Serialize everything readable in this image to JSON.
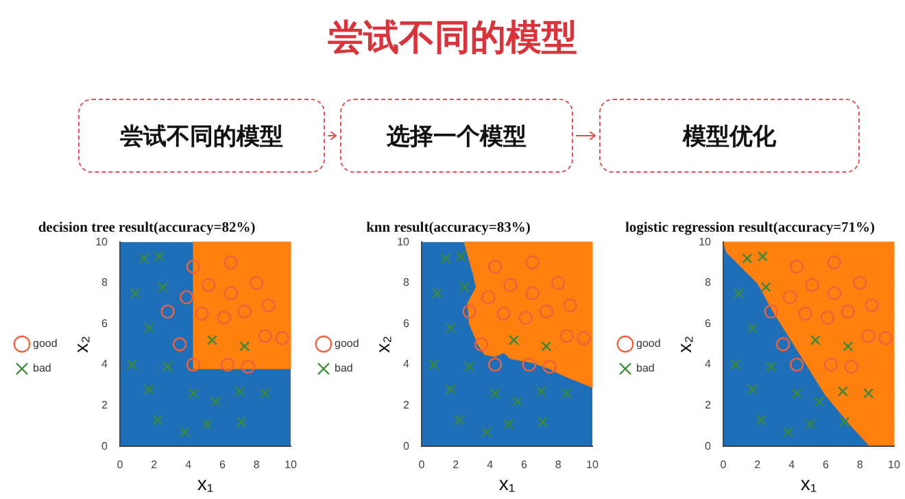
{
  "chart_data": [
    {
      "type": "other",
      "title": "尝试不同的模型",
      "annotations": [
        "尝试不同的模型",
        "选择一个模型",
        "模型优化"
      ]
    },
    {
      "type": "scatter",
      "title": "decision tree result(accuracy=82%)",
      "xlabel": "x₁",
      "ylabel": "x₂",
      "xlim": [
        0,
        10
      ],
      "ylim": [
        0,
        10
      ],
      "xticks": [
        0,
        2,
        4,
        6,
        8,
        10
      ],
      "yticks": [
        0,
        2,
        4,
        6,
        8,
        10
      ],
      "grid": false,
      "legend": "left",
      "series": [
        {
          "name": "good",
          "color": "#f0603c",
          "marker": "circle",
          "x": [
            4.3,
            6.5,
            5.2,
            6.5,
            8.0,
            3.9,
            2.8,
            4.8,
            6.1,
            7.3,
            8.7,
            3.5,
            8.5,
            9.5,
            4.3,
            6.3,
            7.5
          ],
          "values": [
            8.8,
            9.0,
            7.9,
            7.5,
            8.0,
            7.3,
            6.6,
            6.5,
            6.3,
            6.6,
            6.9,
            5.0,
            5.4,
            5.3,
            4.0,
            4.0,
            3.9
          ]
        },
        {
          "name": "bad",
          "color": "#3a8a3a",
          "marker": "cross",
          "x": [
            1.4,
            2.3,
            0.9,
            2.5,
            1.7,
            0.7,
            2.8,
            5.4,
            7.3,
            1.7,
            4.3,
            5.6,
            7.0,
            8.5,
            2.2,
            5.1,
            7.1,
            3.8
          ],
          "values": [
            9.2,
            9.3,
            7.5,
            7.8,
            5.8,
            4.0,
            3.9,
            5.2,
            4.9,
            2.8,
            2.6,
            2.2,
            2.7,
            2.6,
            1.3,
            1.1,
            1.2,
            0.7
          ]
        }
      ]
    },
    {
      "type": "scatter",
      "title": "knn result(accuracy=83%)",
      "xlabel": "x₁",
      "ylabel": "x₂",
      "xlim": [
        0,
        10
      ],
      "ylim": [
        0,
        10
      ],
      "xticks": [
        0,
        2,
        4,
        6,
        8,
        10
      ],
      "yticks": [
        0,
        2,
        4,
        6,
        8,
        10
      ],
      "grid": false,
      "legend": "left",
      "series": [
        {
          "name": "good",
          "color": "#f0603c",
          "marker": "circle",
          "x": [
            4.3,
            6.5,
            5.2,
            6.5,
            8.0,
            3.9,
            2.8,
            4.8,
            6.1,
            7.3,
            8.7,
            3.5,
            8.5,
            9.5,
            4.3,
            6.3,
            7.5
          ],
          "values": [
            8.8,
            9.0,
            7.9,
            7.5,
            8.0,
            7.3,
            6.6,
            6.5,
            6.3,
            6.6,
            6.9,
            5.0,
            5.4,
            5.3,
            4.0,
            4.0,
            3.9
          ]
        },
        {
          "name": "bad",
          "color": "#3a8a3a",
          "marker": "cross",
          "x": [
            1.4,
            2.3,
            0.9,
            2.5,
            1.7,
            0.7,
            2.8,
            5.4,
            7.3,
            1.7,
            4.3,
            5.6,
            7.0,
            8.5,
            2.2,
            5.1,
            7.1,
            3.8
          ],
          "values": [
            9.2,
            9.3,
            7.5,
            7.8,
            5.8,
            4.0,
            3.9,
            5.2,
            4.9,
            2.8,
            2.6,
            2.2,
            2.7,
            2.6,
            1.3,
            1.1,
            1.2,
            0.7
          ]
        }
      ]
    },
    {
      "type": "scatter",
      "title": "logistic regression result(accuracy=71%)",
      "xlabel": "x₁",
      "ylabel": "x₂",
      "xlim": [
        0,
        10
      ],
      "ylim": [
        0,
        10
      ],
      "xticks": [
        0,
        2,
        4,
        6,
        8,
        10
      ],
      "yticks": [
        0,
        2,
        4,
        6,
        8,
        10
      ],
      "grid": false,
      "legend": "left",
      "series": [
        {
          "name": "good",
          "color": "#f0603c",
          "marker": "circle",
          "x": [
            4.3,
            6.5,
            5.2,
            6.5,
            8.0,
            3.9,
            2.8,
            4.8,
            6.1,
            7.3,
            8.7,
            3.5,
            8.5,
            9.5,
            4.3,
            6.3,
            7.5
          ],
          "values": [
            8.8,
            9.0,
            7.9,
            7.5,
            8.0,
            7.3,
            6.6,
            6.5,
            6.3,
            6.6,
            6.9,
            5.0,
            5.4,
            5.3,
            4.0,
            4.0,
            3.9
          ]
        },
        {
          "name": "bad",
          "color": "#3a8a3a",
          "marker": "cross",
          "x": [
            1.4,
            2.3,
            0.9,
            2.5,
            1.7,
            0.7,
            2.8,
            5.4,
            7.3,
            1.7,
            4.3,
            5.6,
            7.0,
            8.5,
            2.2,
            5.1,
            7.1,
            3.8
          ],
          "values": [
            9.2,
            9.3,
            7.5,
            7.8,
            5.8,
            4.0,
            3.9,
            5.2,
            4.9,
            2.8,
            2.6,
            2.2,
            2.7,
            2.6,
            1.3,
            1.1,
            1.2,
            0.7
          ]
        }
      ]
    }
  ]
}
